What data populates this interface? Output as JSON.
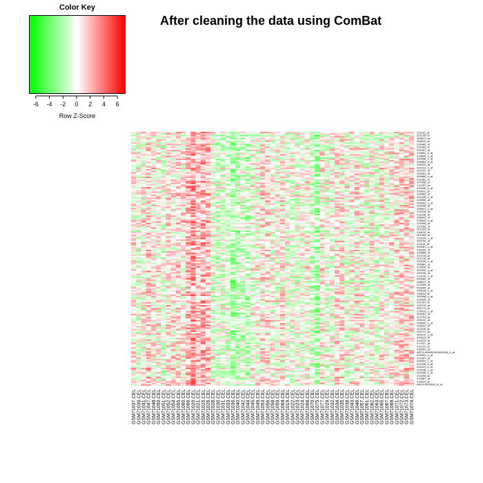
{
  "title": "After cleaning the data using ComBat",
  "color_key": {
    "title": "Color Key",
    "xlabel": "Row Z-Score",
    "ticks": [
      "-6",
      "-4",
      "-2",
      "0",
      "2",
      "4",
      "6"
    ],
    "range": [
      -7,
      7
    ],
    "low_color": "#00ff00",
    "mid_color": "#ffffff",
    "high_color": "#ff0000"
  },
  "chart_data": {
    "type": "heatmap",
    "title": "After cleaning the data using ComBat",
    "samples": [
      "GSM71037.CEL",
      "GSM71039.CEL",
      "GSM71041.CEL",
      "GSM71047.CEL",
      "GSM71048.CEL",
      "GSM71050.CEL",
      "GSM71051.CEL",
      "GSM71052.CEL",
      "GSM71054.CEL",
      "GSM71055.CEL",
      "GSM71060.CEL",
      "GSM71066.CEL",
      "GSM71020.CEL",
      "GSM71021.CEL",
      "GSM71025.CEL",
      "GSM71026.CEL",
      "GSM71028.CEL",
      "GSM71030.CEL",
      "GSM71031.CEL",
      "GSM71033.CEL",
      "GSM71036.CEL",
      "GSM71040.CEL",
      "GSM71042.CEL",
      "GSM71044.CEL",
      "GSM71045.CEL",
      "GSM71049.CEL",
      "GSM71053.CEL",
      "GSM71056.CEL",
      "GSM71058.CEL",
      "GSM71059.CEL",
      "GSM71064.CEL",
      "GSM71019.CEL",
      "GSM71022.CEL",
      "GSM71023.CEL",
      "GSM71024.CEL",
      "GSM71068.CEL",
      "GSM71070.CEL",
      "GSM71075.CEL",
      "GSM71077.CEL",
      "GSM71029.CEL",
      "GSM71032.CEL",
      "GSM71034.CEL",
      "GSM71035.CEL",
      "GSM71038.CEL",
      "GSM71043.CEL",
      "GSM71046.CEL",
      "GSM71057.CEL",
      "GSM71061.CEL",
      "GSM71062.CEL",
      "GSM71063.CEL",
      "GSM71065.CEL",
      "GSM71067.CEL",
      "GSM71069.CEL",
      "GSM71071.CEL",
      "GSM71072.CEL",
      "GSM71073.CEL",
      "GSM71074.CEL"
    ],
    "genes": [
      "211110_at",
      "221125_at",
      "209871_at",
      "206011_at",
      "216480_at",
      "211982_at",
      "202767_at",
      "219821_s_at",
      "218625_s_at",
      "220336_s_at",
      "205964_s_at",
      "206020_at",
      "221012_s_at",
      "221722_at",
      "202251_at",
      "209886_s_at",
      "211981_at",
      "207556_at",
      "212787_at",
      "220440_s_at",
      "218911_at",
      "214682_at",
      "221028_s_at",
      "218806_at",
      "205264_s_at",
      "222036_at",
      "208041_s_at",
      "219218_at",
      "211438_at",
      "206942_at",
      "219623_s_at",
      "218406_at",
      "222182_at",
      "221325_at",
      "218132_at",
      "201385_at",
      "216230_x_at",
      "220734_at",
      "212111_at",
      "209281_s_at",
      "216202_at",
      "220586_at",
      "213718_at",
      "207216_at",
      "220225_x_at",
      "205087_at",
      "213415_at",
      "207500_s_at",
      "220105_at",
      "212190_x_at",
      "203060_at",
      "208017_at",
      "213250_at",
      "206305_at",
      "209128_s_at",
      "218112_at",
      "205398_s_at",
      "219155_at",
      "211767_at",
      "215710_at",
      "201170_at",
      "216015_s_at",
      "202281_at",
      "217193_at",
      "205142_at",
      "206530_s_at",
      "218231_at",
      "221105_at",
      "215711_at",
      "200970_s_at",
      "220115_at",
      "214370_at",
      "217027_at",
      "211722_at",
      "218151_at",
      "AFFX-HUMRGE/M10098_5_at",
      "209431_s_at",
      "221287_at",
      "220022_s_at",
      "221026_s_at",
      "201121_s_at",
      "215138_s_at",
      "207240_s_at",
      "211093_at",
      "214967_at",
      "219110_at",
      "AFFX-M27830_M_at"
    ],
    "values_note": "row z-scores, range approx -7 to 7",
    "xlabel": "",
    "ylabel": ""
  }
}
